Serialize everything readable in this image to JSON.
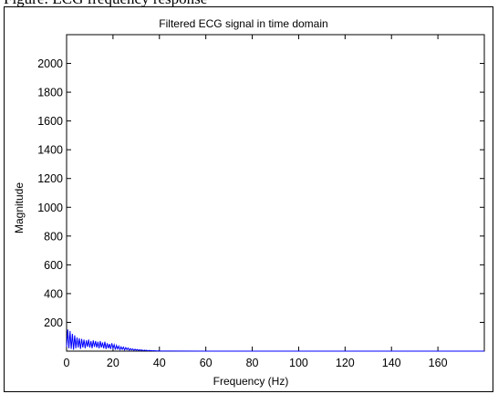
{
  "top_caption": "Figure: ECG frequency response",
  "chart_data": {
    "type": "line",
    "title": "Filtered ECG signal in time domain",
    "xlabel": "Frequency (Hz)",
    "ylabel": "Magnitude",
    "xlim": [
      0,
      180
    ],
    "ylim": [
      0,
      2200
    ],
    "xticks": [
      0,
      20,
      40,
      60,
      80,
      100,
      120,
      140,
      160
    ],
    "yticks": [
      200,
      400,
      600,
      800,
      1000,
      1200,
      1400,
      1600,
      1800,
      2000
    ],
    "grid": false,
    "series": [
      {
        "color": "#0000ff",
        "x": [
          0,
          0.5,
          1,
          1.5,
          2,
          2.5,
          3,
          3.5,
          4,
          4.5,
          5,
          5.5,
          6,
          6.5,
          7,
          7.5,
          8,
          8.5,
          9,
          9.5,
          10,
          10.5,
          11,
          11.5,
          12,
          12.5,
          13,
          13.5,
          14,
          14.5,
          15,
          15.5,
          16,
          16.5,
          17,
          17.5,
          18,
          18.5,
          19,
          19.5,
          20,
          20.5,
          21,
          21.5,
          22,
          22.5,
          23,
          23.5,
          24,
          24.5,
          25,
          25.5,
          26,
          26.5,
          27,
          27.5,
          28,
          28.5,
          29,
          29.5,
          30,
          30.5,
          31,
          31.5,
          32,
          32.5,
          33,
          33.5,
          34,
          34.5,
          35,
          35.5,
          36,
          36.5,
          37,
          37.5,
          38,
          38.5,
          39,
          39.5,
          40,
          45,
          60,
          80,
          100,
          120,
          140,
          160,
          180
        ],
        "values": [
          30,
          150,
          20,
          140,
          15,
          120,
          10,
          110,
          20,
          95,
          25,
          90,
          15,
          85,
          25,
          80,
          20,
          75,
          30,
          80,
          25,
          70,
          20,
          75,
          30,
          70,
          25,
          65,
          20,
          70,
          25,
          60,
          20,
          65,
          15,
          55,
          20,
          50,
          15,
          55,
          20,
          45,
          10,
          40,
          15,
          35,
          10,
          30,
          12,
          28,
          8,
          25,
          10,
          22,
          6,
          18,
          8,
          16,
          5,
          14,
          6,
          12,
          4,
          10,
          5,
          8,
          3,
          7,
          4,
          6,
          2,
          5,
          3,
          4,
          2,
          3,
          2,
          2,
          1,
          2,
          1,
          1,
          0,
          0,
          0,
          0,
          0,
          0,
          0
        ]
      }
    ]
  }
}
